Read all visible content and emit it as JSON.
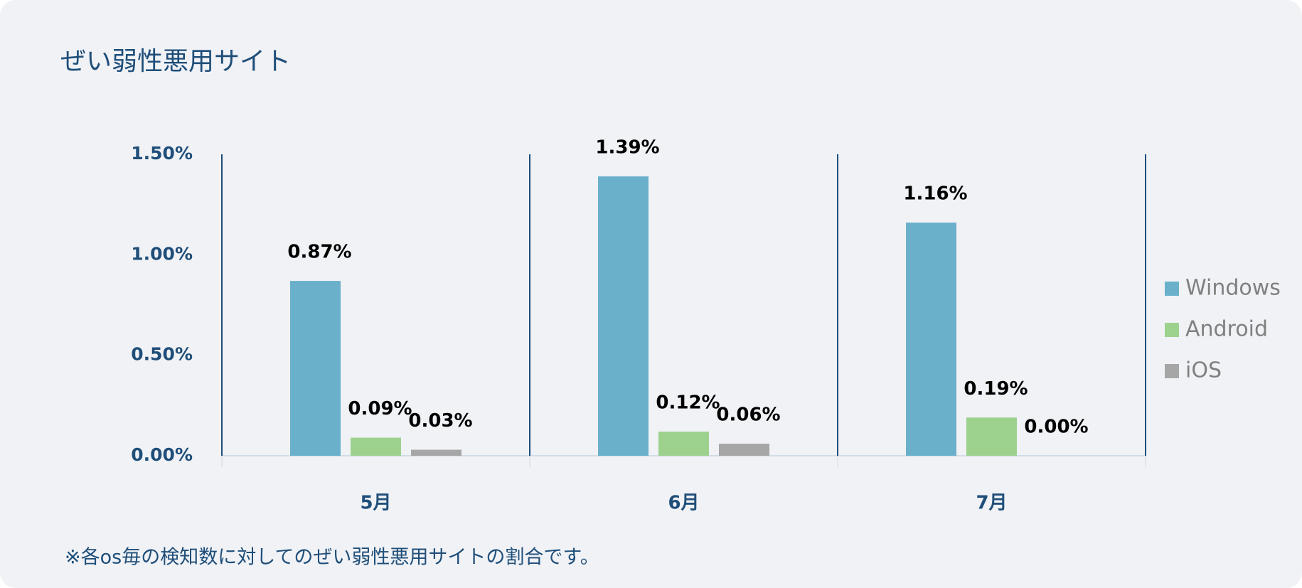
{
  "chart_data": {
    "type": "bar",
    "title": "ぜい弱性悪用サイト",
    "categories": [
      "5月",
      "6月",
      "7月"
    ],
    "series": [
      {
        "name": "Windows",
        "color": "#6bb0cb",
        "values": [
          0.87,
          1.39,
          1.16
        ],
        "value_labels": [
          "0.87%",
          "1.39%",
          "1.16%"
        ]
      },
      {
        "name": "Android",
        "color": "#9dd18e",
        "values": [
          0.09,
          0.12,
          0.19
        ],
        "value_labels": [
          "0.09%",
          "0.12%",
          "0.19%"
        ]
      },
      {
        "name": "iOS",
        "color": "#a6a6a6",
        "values": [
          0.03,
          0.06,
          0.0
        ],
        "value_labels": [
          "0.03%",
          "0.06%",
          "0.00%"
        ]
      }
    ],
    "ylim": [
      0,
      1.5
    ],
    "yticks": [
      {
        "value": 0,
        "label": "0.00%"
      },
      {
        "value": 0.5,
        "label": "0.50%"
      },
      {
        "value": 1,
        "label": "1.00%"
      },
      {
        "value": 1.5,
        "label": "1.50%"
      }
    ],
    "grid": false,
    "legend": "right",
    "footnote": "※各os毎の検知数に対してのぜい弱性悪用サイトの割合です。"
  }
}
